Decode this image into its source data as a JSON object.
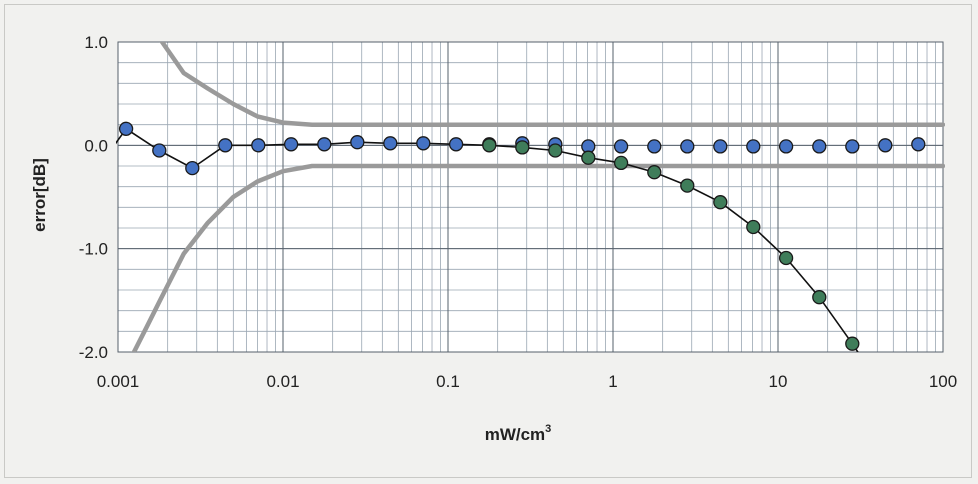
{
  "chart_data": {
    "type": "scatter",
    "title": "",
    "xlabel": "mW/cm",
    "xlabel_superscript": "3",
    "ylabel": "error[dB]",
    "x_scale": "log",
    "xlim": [
      0.001,
      100
    ],
    "ylim": [
      -2.0,
      1.0
    ],
    "x_ticks": [
      {
        "value": 0.001,
        "label": "0.001"
      },
      {
        "value": 0.01,
        "label": "0.01"
      },
      {
        "value": 0.1,
        "label": "0.1"
      },
      {
        "value": 1,
        "label": "1"
      },
      {
        "value": 10,
        "label": "10"
      },
      {
        "value": 100,
        "label": "100"
      }
    ],
    "y_ticks": [
      {
        "value": 1.0,
        "label": "1.0"
      },
      {
        "value": 0.0,
        "label": "0.0"
      },
      {
        "value": -1.0,
        "label": "-1.0"
      },
      {
        "value": -2.0,
        "label": "-2.0"
      }
    ],
    "y_minor_step": 0.2,
    "grid": true,
    "legend": "none",
    "series": [
      {
        "color": "#4472c4",
        "style": "markers",
        "x": [
          0.00112,
          0.00178,
          0.00282,
          0.00447,
          0.00708,
          0.0112,
          0.0178,
          0.0282,
          0.0447,
          0.0708,
          0.112,
          0.178,
          0.282,
          0.447,
          0.708,
          1.12,
          1.78,
          2.82,
          4.47,
          7.08,
          11.2,
          17.8,
          28.2,
          44.7,
          70.8
        ],
        "y": [
          0.16,
          -0.05,
          -0.22,
          0.0,
          0.0,
          0.01,
          0.01,
          0.03,
          0.02,
          0.02,
          0.01,
          0.01,
          0.02,
          0.01,
          -0.01,
          -0.01,
          -0.01,
          -0.01,
          -0.01,
          -0.01,
          -0.01,
          -0.01,
          -0.01,
          0.0,
          0.01
        ]
      },
      {
        "color": "#3f7d5a",
        "style": "markers",
        "x": [
          0.178,
          0.282,
          0.447,
          0.708,
          1.12,
          1.78,
          2.82,
          4.47,
          7.08,
          11.2,
          17.8,
          28.2
        ],
        "y": [
          0.0,
          -0.02,
          -0.05,
          -0.12,
          -0.17,
          -0.26,
          -0.39,
          -0.55,
          -0.79,
          -1.09,
          -1.47,
          -1.92
        ]
      },
      {
        "color": "#9a9a9a",
        "style": "thick-line",
        "x": [
          0.00185,
          0.0025,
          0.0035,
          0.005,
          0.007,
          0.01,
          0.015,
          0.03,
          0.1,
          1,
          10,
          100
        ],
        "y": [
          1.0,
          0.7,
          0.55,
          0.4,
          0.28,
          0.22,
          0.2,
          0.2,
          0.2,
          0.2,
          0.2,
          0.2
        ]
      },
      {
        "color": "#9a9a9a",
        "style": "thick-line",
        "x": [
          0.00125,
          0.0015,
          0.0018,
          0.0025,
          0.0035,
          0.005,
          0.007,
          0.01,
          0.015,
          0.03,
          0.1,
          1,
          10,
          100
        ],
        "y": [
          -2.0,
          -1.75,
          -1.5,
          -1.05,
          -0.75,
          -0.5,
          -0.35,
          -0.25,
          -0.2,
          -0.2,
          -0.2,
          -0.2,
          -0.2,
          -0.2
        ]
      }
    ],
    "trend_line": {
      "color": "#111111",
      "x": [
        0.00095,
        0.00112,
        0.00178,
        0.00282,
        0.00447,
        0.00708,
        0.0112,
        0.0178,
        0.0282,
        0.0447,
        0.0708,
        0.112,
        0.178,
        0.282,
        0.447,
        0.708,
        1.12,
        1.78,
        2.82,
        4.47,
        7.08,
        11.2,
        17.8,
        28.2,
        32
      ],
      "y": [
        0.0,
        0.16,
        -0.05,
        -0.22,
        0.0,
        0.0,
        0.01,
        0.01,
        0.03,
        0.02,
        0.02,
        0.01,
        0.0,
        -0.02,
        -0.05,
        -0.12,
        -0.17,
        -0.26,
        -0.39,
        -0.55,
        -0.79,
        -1.09,
        -1.47,
        -1.92,
        -2.05
      ]
    }
  }
}
